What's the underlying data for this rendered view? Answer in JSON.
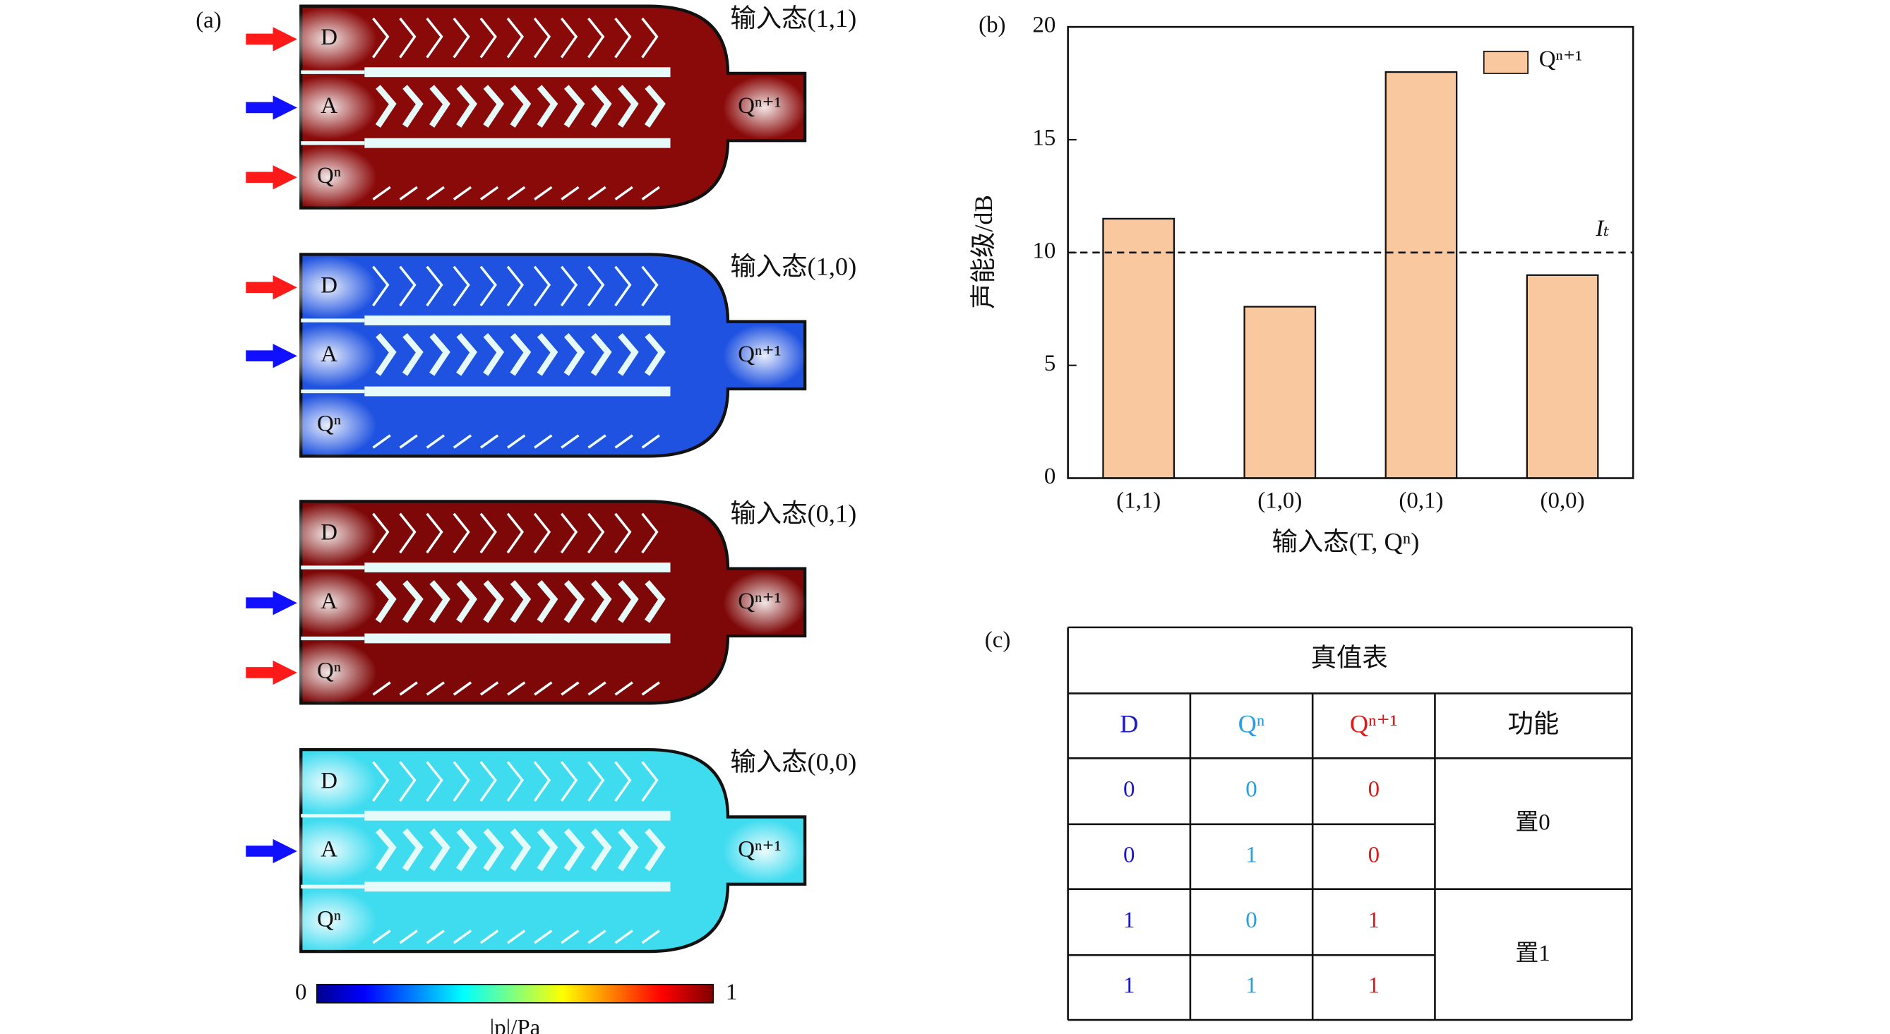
{
  "simulation": {
    "panel_label": "(a)",
    "states": [
      {
        "title": "输入态(1,1)",
        "ports": [
          "D",
          "A",
          "Qⁿ"
        ],
        "output": "Qⁿ⁺¹",
        "color": "#8a0a0a"
      },
      {
        "title": "输入态(1,0)",
        "ports": [
          "D",
          "A",
          "Qⁿ"
        ],
        "output": "Qⁿ⁺¹",
        "color": "#1f52e0"
      },
      {
        "title": "输入态(0,1)",
        "ports": [
          "D",
          "A",
          "Qⁿ"
        ],
        "output": "Qⁿ⁺¹",
        "color": "#7e0808"
      },
      {
        "title": "输入态(0,0)",
        "ports": [
          "D",
          "A",
          "Qⁿ"
        ],
        "output": "Qⁿ⁺¹",
        "color": "#3fdcf0"
      }
    ],
    "colorbar": {
      "min": 0,
      "max": 1,
      "label": "|p|/Pa"
    }
  },
  "chart_data": {
    "type": "bar",
    "panel_label": "(b)",
    "categories": [
      "(1,1)",
      "(1,0)",
      "(0,1)",
      "(0,0)"
    ],
    "series": [
      {
        "name": "Qⁿ⁺¹",
        "color": "#f9c89f",
        "values": [
          11.5,
          7.6,
          18,
          9
        ]
      }
    ],
    "ylabel": "声能级/dB",
    "xlabel": "输入态(T, Qⁿ)",
    "ylim": [
      0,
      20
    ],
    "yticks": [
      0,
      5,
      10,
      15,
      20
    ],
    "threshold": {
      "value": 10,
      "label": "Iₜ"
    },
    "legend": "upper right"
  },
  "table": {
    "panel_label": "(c)",
    "title": "真值表",
    "header": [
      "D",
      "Qⁿ",
      "Qⁿ⁺¹",
      "功能"
    ],
    "rows": [
      [
        0,
        0,
        0
      ],
      [
        0,
        1,
        0
      ],
      [
        1,
        0,
        1
      ],
      [
        1,
        1,
        1
      ]
    ],
    "functions": [
      "置0",
      "置1"
    ]
  }
}
